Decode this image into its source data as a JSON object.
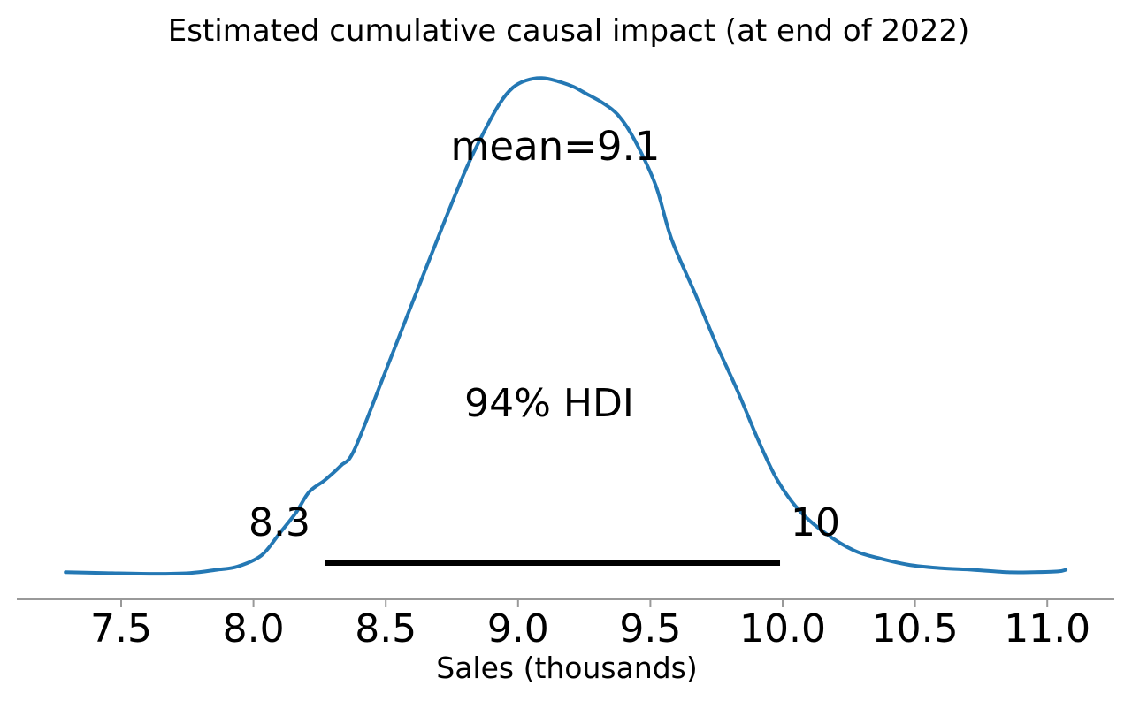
{
  "chart_data": {
    "type": "line",
    "subtype": "kde-posterior-density",
    "title": "Estimated cumulative causal impact (at end of 2022)",
    "xlabel": "Sales (thousands)",
    "ylabel": "",
    "legend": "none",
    "grid": false,
    "xlim": [
      7.25,
      11.1
    ],
    "x_ticks": [
      7.5,
      8.0,
      8.5,
      9.0,
      9.5,
      10.0,
      10.5,
      11.0
    ],
    "x_tick_labels": [
      "7.5",
      "8.0",
      "8.5",
      "9.0",
      "9.5",
      "10.0",
      "10.5",
      "11.0"
    ],
    "mean": 9.1,
    "mean_label": "mean=9.1",
    "hdi": {
      "prob_label": "94% HDI",
      "lower": 8.3,
      "upper": 10,
      "lower_label": "8.3",
      "upper_label": "10",
      "bar_span": [
        8.27,
        9.99
      ]
    },
    "line_color": "#2478b4",
    "hdi_bar_color": "#000000",
    "axis_color": "#999999",
    "curve": {
      "x": [
        7.29,
        7.44,
        7.63,
        7.76,
        7.86,
        7.94,
        8.03,
        8.1,
        8.16,
        8.21,
        8.27,
        8.33,
        8.38,
        8.49,
        8.6,
        8.71,
        8.8,
        8.87,
        8.93,
        8.98,
        9.03,
        9.09,
        9.15,
        9.21,
        9.26,
        9.32,
        9.38,
        9.44,
        9.52,
        9.58,
        9.67,
        9.75,
        9.83,
        9.91,
        9.98,
        10.06,
        10.16,
        10.27,
        10.37,
        10.48,
        10.6,
        10.72,
        10.85,
        10.95,
        11.04,
        11.07
      ],
      "density": [
        0.003,
        0.002,
        0.001,
        0.002,
        0.006,
        0.01,
        0.024,
        0.052,
        0.077,
        0.103,
        0.118,
        0.136,
        0.155,
        0.246,
        0.339,
        0.431,
        0.504,
        0.552,
        0.588,
        0.608,
        0.617,
        0.62,
        0.616,
        0.609,
        0.6,
        0.589,
        0.573,
        0.543,
        0.486,
        0.419,
        0.35,
        0.287,
        0.229,
        0.166,
        0.118,
        0.081,
        0.052,
        0.03,
        0.02,
        0.012,
        0.008,
        0.006,
        0.003,
        0.003,
        0.004,
        0.006
      ]
    }
  }
}
